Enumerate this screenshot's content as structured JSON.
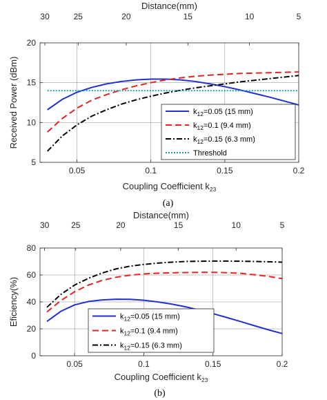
{
  "chart_data": [
    {
      "type": "line",
      "caption": "(a)",
      "xlabel": "Coupling Coefficient k",
      "xlabel_sub": "23",
      "ylabel": "Received Power (dBm)",
      "top_xlabel": "Distance(mm)",
      "xlim": [
        0.025,
        0.2
      ],
      "ylim": [
        5,
        20
      ],
      "xticks": [
        0.05,
        0.1,
        0.15,
        0.2
      ],
      "xtick_labels": [
        "0.05",
        "0.1",
        "0.15",
        "0.2"
      ],
      "yticks": [
        5,
        10,
        15,
        20
      ],
      "ytick_labels": [
        "5",
        "10",
        "15",
        "20"
      ],
      "top_ticks": [
        {
          "x": 0.0283,
          "label": "30"
        },
        {
          "x": 0.0508,
          "label": "25"
        },
        {
          "x": 0.0833,
          "label": "20"
        },
        {
          "x": 0.125,
          "label": "15"
        },
        {
          "x": 0.1667,
          "label": "10"
        },
        {
          "x": 0.2,
          "label": "5"
        }
      ],
      "grid": true,
      "legend_position": "lower-right",
      "series": [
        {
          "name_main": "k",
          "name_sub": "12",
          "name_rest": "=0.05 (15 mm)",
          "color": "#1f2fd6",
          "dash": "",
          "x": [
            0.03,
            0.04,
            0.05,
            0.06,
            0.07,
            0.08,
            0.09,
            0.1,
            0.11,
            0.12,
            0.13,
            0.14,
            0.15,
            0.16,
            0.17,
            0.18,
            0.19,
            0.2
          ],
          "y": [
            11.6,
            12.9,
            13.8,
            14.4,
            14.85,
            15.15,
            15.35,
            15.45,
            15.45,
            15.35,
            15.15,
            14.85,
            14.5,
            14.1,
            13.65,
            13.2,
            12.7,
            12.2
          ]
        },
        {
          "name_main": "k",
          "name_sub": "12",
          "name_rest": "=0.1 (9.4 mm)",
          "color": "#e8231f",
          "dash": "9,5",
          "x": [
            0.03,
            0.04,
            0.05,
            0.06,
            0.07,
            0.08,
            0.09,
            0.1,
            0.11,
            0.12,
            0.13,
            0.14,
            0.15,
            0.16,
            0.17,
            0.18,
            0.19,
            0.2
          ],
          "y": [
            8.8,
            10.5,
            11.8,
            12.8,
            13.5,
            14.1,
            14.6,
            15.0,
            15.35,
            15.6,
            15.8,
            15.95,
            16.05,
            16.15,
            16.2,
            16.25,
            16.3,
            16.35
          ]
        },
        {
          "name_main": "k",
          "name_sub": "12",
          "name_rest": "=0.15 (6.3 mm)",
          "color": "#000000",
          "dash": "8,3,2,3",
          "x": [
            0.03,
            0.04,
            0.05,
            0.06,
            0.07,
            0.08,
            0.09,
            0.1,
            0.11,
            0.12,
            0.13,
            0.14,
            0.15,
            0.16,
            0.17,
            0.18,
            0.19,
            0.2
          ],
          "y": [
            6.4,
            8.3,
            9.7,
            10.8,
            11.6,
            12.3,
            12.85,
            13.3,
            13.7,
            14.05,
            14.35,
            14.6,
            14.85,
            15.1,
            15.3,
            15.5,
            15.7,
            15.9
          ]
        },
        {
          "name_main": "Threshold",
          "name_sub": "",
          "name_rest": "",
          "color": "#1a9bb0",
          "dash": "2,2",
          "x": [
            0.03,
            0.2
          ],
          "y": [
            14.0,
            14.0
          ]
        }
      ]
    },
    {
      "type": "line",
      "caption": "(b)",
      "xlabel": "Coupling Coefficient k",
      "xlabel_sub": "23",
      "ylabel": "Eficiency(%)",
      "top_xlabel": "Distance(mm)",
      "xlim": [
        0.025,
        0.2
      ],
      "ylim": [
        0,
        80
      ],
      "xticks": [
        0.05,
        0.1,
        0.15,
        0.2
      ],
      "xtick_labels": [
        "0.05",
        "0.1",
        "0.15",
        "0.2"
      ],
      "yticks": [
        0,
        20,
        40,
        60,
        80
      ],
      "ytick_labels": [
        "0",
        "20",
        "40",
        "60",
        "80"
      ],
      "top_ticks": [
        {
          "x": 0.0283,
          "label": "30"
        },
        {
          "x": 0.0508,
          "label": "25"
        },
        {
          "x": 0.0833,
          "label": "20"
        },
        {
          "x": 0.125,
          "label": "15"
        },
        {
          "x": 0.1667,
          "label": "10"
        },
        {
          "x": 0.2,
          "label": "5"
        }
      ],
      "grid": true,
      "legend_position": "lower-center",
      "series": [
        {
          "name_main": "k",
          "name_sub": "12",
          "name_rest": "=0.05 (15 mm)",
          "color": "#1f2fd6",
          "dash": "",
          "x": [
            0.03,
            0.04,
            0.05,
            0.06,
            0.07,
            0.08,
            0.09,
            0.1,
            0.11,
            0.12,
            0.13,
            0.14,
            0.15,
            0.16,
            0.17,
            0.18,
            0.19,
            0.2
          ],
          "y": [
            25.5,
            33,
            37.8,
            40.3,
            41.5,
            42.0,
            41.9,
            41.2,
            40.0,
            38.4,
            36.4,
            34.0,
            31.3,
            28.4,
            25.4,
            22.3,
            19.3,
            16.5
          ]
        },
        {
          "name_main": "k",
          "name_sub": "12",
          "name_rest": "=0.1 (9.4 mm)",
          "color": "#e8231f",
          "dash": "9,5",
          "x": [
            0.03,
            0.04,
            0.05,
            0.06,
            0.07,
            0.08,
            0.09,
            0.1,
            0.11,
            0.12,
            0.13,
            0.14,
            0.15,
            0.16,
            0.17,
            0.18,
            0.19,
            0.2
          ],
          "y": [
            32.5,
            41,
            47.5,
            52.5,
            56,
            58.3,
            59.8,
            60.8,
            61.3,
            61.6,
            61.8,
            61.9,
            61.9,
            61.7,
            61.2,
            60.2,
            58.9,
            57.3
          ]
        },
        {
          "name_main": "k",
          "name_sub": "12",
          "name_rest": "=0.15 (6.3 mm)",
          "color": "#000000",
          "dash": "8,3,2,3",
          "x": [
            0.03,
            0.04,
            0.05,
            0.06,
            0.07,
            0.08,
            0.09,
            0.1,
            0.11,
            0.12,
            0.13,
            0.14,
            0.15,
            0.16,
            0.17,
            0.18,
            0.19,
            0.2
          ],
          "y": [
            36,
            45.5,
            52.5,
            57.5,
            61.5,
            64.5,
            66.5,
            67.8,
            68.8,
            69.5,
            70.0,
            70.2,
            70.3,
            70.3,
            70.2,
            70.0,
            69.8,
            69.5
          ]
        }
      ]
    }
  ]
}
